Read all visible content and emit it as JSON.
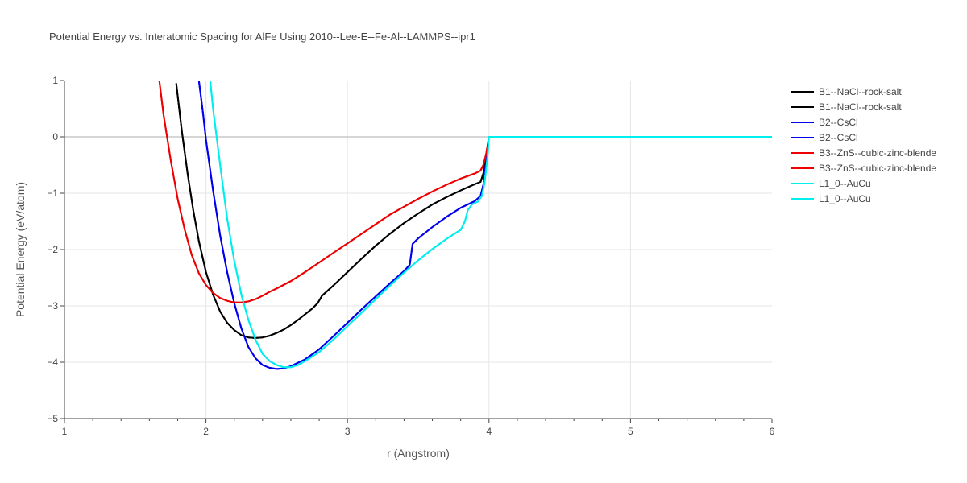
{
  "chart_data": {
    "type": "line",
    "title": "Potential Energy vs. Interatomic Spacing for AlFe Using 2010--Lee-E--Fe-Al--LAMMPS--ipr1",
    "xlabel": "r (Angstrom)",
    "ylabel": "Potential Energy (eV/atom)",
    "xlim": [
      1,
      6
    ],
    "ylim": [
      -5,
      1
    ],
    "xticks": [
      "1",
      "2",
      "3",
      "4",
      "5",
      "6"
    ],
    "yticks": [
      "−5",
      "−4",
      "−3",
      "−2",
      "−1",
      "0",
      "1"
    ],
    "grid": true,
    "legend_position": "right",
    "series": [
      {
        "name": "B1--NaCl--rock-salt",
        "color": "#000000",
        "x": [
          1.79,
          1.83,
          1.87,
          1.91,
          1.95,
          2.0,
          2.05,
          2.1,
          2.15,
          2.2,
          2.25,
          2.3,
          2.35,
          2.4,
          2.45,
          2.5,
          2.55,
          2.6,
          2.65,
          2.7,
          2.75,
          2.79,
          2.82,
          2.9,
          3.0,
          3.1,
          3.2,
          3.3,
          3.4,
          3.5,
          3.6,
          3.7,
          3.8,
          3.9,
          3.94,
          3.96,
          3.98,
          4.0,
          4.5,
          5.0,
          5.5,
          6.0
        ],
        "y": [
          0.95,
          0.1,
          -0.65,
          -1.3,
          -1.85,
          -2.4,
          -2.8,
          -3.1,
          -3.3,
          -3.43,
          -3.52,
          -3.56,
          -3.57,
          -3.56,
          -3.53,
          -3.48,
          -3.42,
          -3.34,
          -3.25,
          -3.15,
          -3.05,
          -2.95,
          -2.82,
          -2.64,
          -2.4,
          -2.16,
          -1.93,
          -1.72,
          -1.53,
          -1.36,
          -1.2,
          -1.07,
          -0.95,
          -0.84,
          -0.8,
          -0.65,
          -0.35,
          0.0,
          0.0,
          0.0,
          0.0,
          0.0
        ]
      },
      {
        "name": "B1--NaCl--rock-salt",
        "color": "#000000",
        "x": [
          1.79,
          1.83,
          1.87,
          1.91,
          1.95,
          2.0,
          2.05,
          2.1,
          2.15,
          2.2,
          2.25,
          2.3,
          2.35,
          2.4,
          2.45,
          2.5,
          2.55,
          2.6,
          2.65,
          2.7,
          2.75,
          2.79,
          2.82,
          2.9,
          3.0,
          3.1,
          3.2,
          3.3,
          3.4,
          3.5,
          3.6,
          3.7,
          3.8,
          3.9,
          3.94,
          3.96,
          3.98,
          4.0,
          4.5,
          5.0,
          5.5,
          6.0
        ],
        "y": [
          0.95,
          0.1,
          -0.65,
          -1.3,
          -1.85,
          -2.4,
          -2.8,
          -3.1,
          -3.3,
          -3.43,
          -3.52,
          -3.56,
          -3.57,
          -3.56,
          -3.53,
          -3.48,
          -3.42,
          -3.34,
          -3.25,
          -3.15,
          -3.05,
          -2.95,
          -2.82,
          -2.64,
          -2.4,
          -2.16,
          -1.93,
          -1.72,
          -1.53,
          -1.36,
          -1.2,
          -1.07,
          -0.95,
          -0.84,
          -0.8,
          -0.65,
          -0.35,
          0.0,
          0.0,
          0.0,
          0.0,
          0.0
        ]
      },
      {
        "name": "B2--CsCl",
        "color": "#0000ee",
        "x": [
          1.95,
          1.98,
          2.0,
          2.05,
          2.1,
          2.15,
          2.2,
          2.25,
          2.3,
          2.35,
          2.4,
          2.45,
          2.5,
          2.55,
          2.6,
          2.7,
          2.8,
          2.9,
          3.0,
          3.1,
          3.2,
          3.3,
          3.4,
          3.44,
          3.46,
          3.5,
          3.6,
          3.7,
          3.8,
          3.9,
          3.94,
          3.96,
          3.98,
          4.0,
          4.5,
          5.0,
          5.5,
          6.0
        ],
        "y": [
          1.0,
          0.4,
          -0.05,
          -0.95,
          -1.75,
          -2.4,
          -2.95,
          -3.4,
          -3.73,
          -3.93,
          -4.05,
          -4.1,
          -4.12,
          -4.11,
          -4.07,
          -3.95,
          -3.77,
          -3.54,
          -3.3,
          -3.06,
          -2.83,
          -2.6,
          -2.38,
          -2.27,
          -1.9,
          -1.8,
          -1.6,
          -1.42,
          -1.26,
          -1.14,
          -1.05,
          -0.85,
          -0.45,
          0.0,
          0.0,
          0.0,
          0.0,
          0.0
        ]
      },
      {
        "name": "B2--CsCl",
        "color": "#0000ee",
        "x": [
          1.95,
          1.98,
          2.0,
          2.05,
          2.1,
          2.15,
          2.2,
          2.25,
          2.3,
          2.35,
          2.4,
          2.45,
          2.5,
          2.55,
          2.6,
          2.7,
          2.8,
          2.9,
          3.0,
          3.1,
          3.2,
          3.3,
          3.4,
          3.44,
          3.46,
          3.5,
          3.6,
          3.7,
          3.8,
          3.9,
          3.94,
          3.96,
          3.98,
          4.0,
          4.5,
          5.0,
          5.5,
          6.0
        ],
        "y": [
          1.0,
          0.4,
          -0.05,
          -0.95,
          -1.75,
          -2.4,
          -2.95,
          -3.4,
          -3.73,
          -3.93,
          -4.05,
          -4.1,
          -4.12,
          -4.11,
          -4.07,
          -3.95,
          -3.77,
          -3.54,
          -3.3,
          -3.06,
          -2.83,
          -2.6,
          -2.38,
          -2.27,
          -1.9,
          -1.8,
          -1.6,
          -1.42,
          -1.26,
          -1.14,
          -1.05,
          -0.85,
          -0.45,
          0.0,
          0.0,
          0.0,
          0.0,
          0.0
        ]
      },
      {
        "name": "B3--ZnS--cubic-zinc-blende",
        "color": "#ee0000",
        "x": [
          1.67,
          1.7,
          1.75,
          1.8,
          1.85,
          1.9,
          1.95,
          2.0,
          2.05,
          2.1,
          2.15,
          2.2,
          2.25,
          2.3,
          2.35,
          2.4,
          2.45,
          2.5,
          2.6,
          2.7,
          2.8,
          2.9,
          3.0,
          3.1,
          3.2,
          3.3,
          3.4,
          3.5,
          3.6,
          3.7,
          3.8,
          3.9,
          3.94,
          3.96,
          3.98,
          4.0,
          4.5,
          5.0,
          5.5,
          6.0
        ],
        "y": [
          1.0,
          0.4,
          -0.4,
          -1.1,
          -1.65,
          -2.1,
          -2.42,
          -2.63,
          -2.77,
          -2.86,
          -2.91,
          -2.94,
          -2.94,
          -2.92,
          -2.88,
          -2.82,
          -2.75,
          -2.69,
          -2.56,
          -2.4,
          -2.23,
          -2.06,
          -1.89,
          -1.72,
          -1.55,
          -1.38,
          -1.24,
          -1.1,
          -0.97,
          -0.85,
          -0.74,
          -0.65,
          -0.6,
          -0.5,
          -0.3,
          0.0,
          0.0,
          0.0,
          0.0,
          0.0
        ]
      },
      {
        "name": "B3--ZnS--cubic-zinc-blende",
        "color": "#ee0000",
        "x": [
          1.67,
          1.7,
          1.75,
          1.8,
          1.85,
          1.9,
          1.95,
          2.0,
          2.05,
          2.1,
          2.15,
          2.2,
          2.25,
          2.3,
          2.35,
          2.4,
          2.45,
          2.5,
          2.6,
          2.7,
          2.8,
          2.9,
          3.0,
          3.1,
          3.2,
          3.3,
          3.4,
          3.5,
          3.6,
          3.7,
          3.8,
          3.9,
          3.94,
          3.96,
          3.98,
          4.0,
          4.5,
          5.0,
          5.5,
          6.0
        ],
        "y": [
          1.0,
          0.4,
          -0.4,
          -1.1,
          -1.65,
          -2.1,
          -2.42,
          -2.63,
          -2.77,
          -2.86,
          -2.91,
          -2.94,
          -2.94,
          -2.92,
          -2.88,
          -2.82,
          -2.75,
          -2.69,
          -2.56,
          -2.4,
          -2.23,
          -2.06,
          -1.89,
          -1.72,
          -1.55,
          -1.38,
          -1.24,
          -1.1,
          -0.97,
          -0.85,
          -0.74,
          -0.65,
          -0.6,
          -0.5,
          -0.3,
          0.0,
          0.0,
          0.0,
          0.0,
          0.0
        ]
      },
      {
        "name": "L1_0--AuCu",
        "color": "#00eeee",
        "x": [
          2.03,
          2.05,
          2.1,
          2.15,
          2.2,
          2.25,
          2.3,
          2.35,
          2.4,
          2.45,
          2.5,
          2.55,
          2.6,
          2.65,
          2.7,
          2.8,
          2.9,
          3.0,
          3.1,
          3.2,
          3.3,
          3.4,
          3.5,
          3.6,
          3.7,
          3.8,
          3.83,
          3.85,
          3.88,
          3.92,
          3.95,
          3.97,
          3.99,
          4.0,
          4.5,
          5.0,
          5.5,
          6.0
        ],
        "y": [
          1.0,
          0.5,
          -0.5,
          -1.45,
          -2.2,
          -2.8,
          -3.25,
          -3.6,
          -3.85,
          -3.98,
          -4.05,
          -4.09,
          -4.09,
          -4.05,
          -3.98,
          -3.82,
          -3.6,
          -3.36,
          -3.12,
          -2.88,
          -2.64,
          -2.41,
          -2.19,
          -1.99,
          -1.81,
          -1.65,
          -1.5,
          -1.3,
          -1.2,
          -1.15,
          -1.05,
          -0.8,
          -0.35,
          0.0,
          0.0,
          0.0,
          0.0,
          0.0
        ]
      },
      {
        "name": "L1_0--AuCu",
        "color": "#00eeee",
        "x": [
          2.03,
          2.05,
          2.1,
          2.15,
          2.2,
          2.25,
          2.3,
          2.35,
          2.4,
          2.45,
          2.5,
          2.55,
          2.6,
          2.65,
          2.7,
          2.8,
          2.9,
          3.0,
          3.1,
          3.2,
          3.3,
          3.4,
          3.5,
          3.6,
          3.7,
          3.8,
          3.83,
          3.85,
          3.88,
          3.92,
          3.95,
          3.97,
          3.99,
          4.0,
          4.5,
          5.0,
          5.5,
          6.0
        ],
        "y": [
          1.0,
          0.5,
          -0.5,
          -1.45,
          -2.2,
          -2.8,
          -3.25,
          -3.6,
          -3.85,
          -3.98,
          -4.05,
          -4.09,
          -4.09,
          -4.05,
          -3.98,
          -3.82,
          -3.6,
          -3.36,
          -3.12,
          -2.88,
          -2.64,
          -2.41,
          -2.19,
          -1.99,
          -1.81,
          -1.65,
          -1.5,
          -1.3,
          -1.2,
          -1.15,
          -1.05,
          -0.8,
          -0.35,
          0.0,
          0.0,
          0.0,
          0.0,
          0.0
        ]
      }
    ]
  }
}
